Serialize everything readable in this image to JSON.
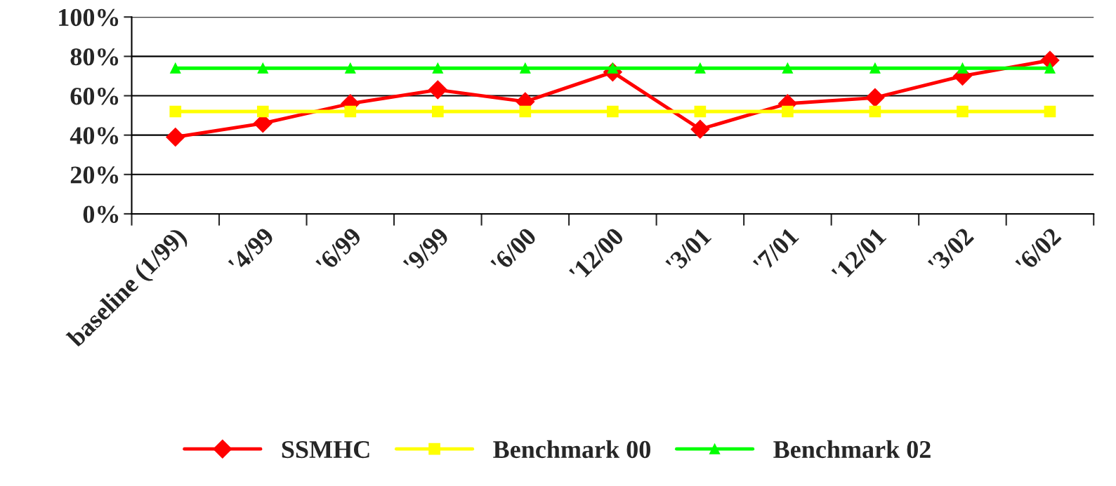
{
  "chart_data": {
    "type": "line",
    "categories": [
      "baseline (1/99)",
      "'4/99",
      "'6/99",
      "'9/99",
      "'6/00",
      "'12/00",
      "'3/01",
      "'7/01",
      "'12/01",
      "'3/02",
      "'6/02"
    ],
    "series": [
      {
        "name": "SSMHC",
        "color": "#ff0000",
        "marker": "diamond",
        "values": [
          39,
          46,
          56,
          63,
          57,
          72,
          43,
          56,
          59,
          70,
          78
        ]
      },
      {
        "name": "Benchmark 00",
        "color": "#ffff00",
        "marker": "square",
        "values": [
          52,
          52,
          52,
          52,
          52,
          52,
          52,
          52,
          52,
          52,
          52
        ]
      },
      {
        "name": "Benchmark 02",
        "color": "#00ff00",
        "marker": "triangle",
        "values": [
          74,
          74,
          74,
          74,
          74,
          74,
          74,
          74,
          74,
          74,
          74
        ]
      }
    ],
    "ylim": [
      0,
      100
    ],
    "yticks": [
      {
        "value": 0,
        "label": "0%"
      },
      {
        "value": 20,
        "label": "20%"
      },
      {
        "value": 40,
        "label": "40%"
      },
      {
        "value": 60,
        "label": "60%"
      },
      {
        "value": 80,
        "label": "80%"
      },
      {
        "value": 100,
        "label": "100%"
      }
    ],
    "grid": "y",
    "legend": "bottom",
    "line_style": "solid"
  }
}
